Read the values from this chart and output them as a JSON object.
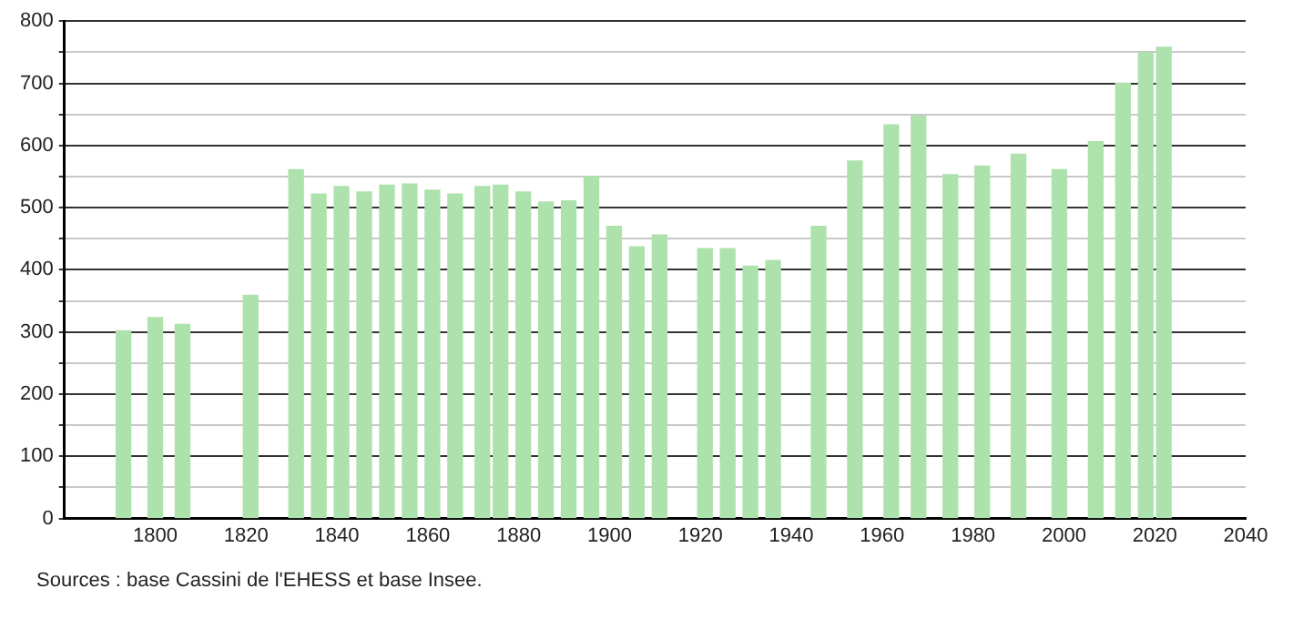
{
  "chart_data": {
    "type": "bar",
    "annotations": [
      "Sources : base Cassini de l'EHESS et base Insee."
    ],
    "x": [
      1793,
      1800,
      1806,
      1821,
      1831,
      1836,
      1841,
      1846,
      1851,
      1856,
      1861,
      1866,
      1872,
      1876,
      1881,
      1886,
      1891,
      1896,
      1901,
      1906,
      1911,
      1921,
      1926,
      1931,
      1936,
      1946,
      1954,
      1962,
      1968,
      1975,
      1982,
      1990,
      1999,
      2007,
      2013,
      2018,
      2022
    ],
    "values": [
      302,
      323,
      312,
      359,
      561,
      522,
      534,
      525,
      536,
      538,
      528,
      522,
      534,
      536,
      525,
      509,
      511,
      550,
      470,
      437,
      456,
      434,
      434,
      406,
      415,
      470,
      575,
      633,
      647,
      553,
      567,
      586,
      561,
      606,
      700,
      749,
      758
    ],
    "color": "#ade2ad",
    "xlim": [
      1780,
      2040
    ],
    "xticks": [
      1800,
      1820,
      1840,
      1860,
      1880,
      1900,
      1920,
      1940,
      1960,
      1980,
      2000,
      2020,
      2040
    ],
    "ylim": [
      0,
      800
    ],
    "yticks": [
      0,
      {
        "value": 50,
        "label": null
      },
      100,
      {
        "value": 150,
        "label": null
      },
      200,
      {
        "value": 250,
        "label": null
      },
      300,
      {
        "value": 350,
        "label": null
      },
      400,
      {
        "value": 450,
        "label": null
      },
      500,
      {
        "value": 550,
        "label": null
      },
      600,
      {
        "value": 650,
        "label": null
      },
      700,
      {
        "value": 750,
        "label": null
      },
      800
    ],
    "grid": "y",
    "legend": false
  }
}
